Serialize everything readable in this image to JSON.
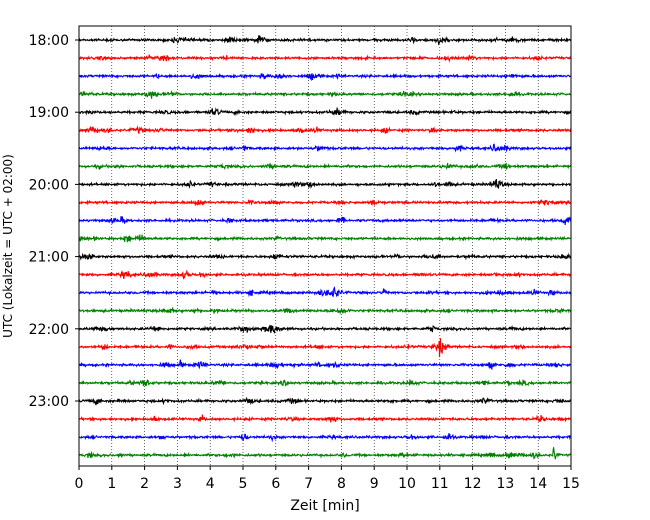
{
  "chart_data": {
    "type": "line",
    "title": "",
    "xlabel": "Zeit  [min]",
    "ylabel": "UTC (Lokalzeit = UTC + 02:00)",
    "xlim": [
      0,
      15
    ],
    "x_ticks": [
      "0",
      "1",
      "2",
      "3",
      "4",
      "5",
      "6",
      "7",
      "8",
      "9",
      "10",
      "11",
      "12",
      "13",
      "14",
      "15"
    ],
    "y_tick_labels": [
      "18:00",
      "19:00",
      "20:00",
      "21:00",
      "22:00",
      "23:00"
    ],
    "grid": "vertical dotted",
    "trace_interval_minutes": 15,
    "first_trace": "18:00",
    "trace_count": 24,
    "trace_colors": [
      "#000000",
      "#ff0000",
      "#0000ff",
      "#008000"
    ],
    "notable_events": [
      {
        "trace": "20:00",
        "x_min": 6.6,
        "amplitude": "large"
      },
      {
        "trace": "20:00",
        "x_min": 11.3,
        "amplitude": "medium"
      },
      {
        "trace": "22:30",
        "x_min": 3.1,
        "amplitude": "medium"
      },
      {
        "trace": "23:45",
        "x_min": 14.5,
        "amplitude": "very large"
      },
      {
        "trace": "21:30",
        "x_min": 9.3,
        "amplitude": "medium"
      },
      {
        "trace": "21:30",
        "x_min": 14.4,
        "amplitude": "medium"
      },
      {
        "trace": "20:30",
        "x_min": 4.6,
        "amplitude": "medium"
      }
    ]
  }
}
